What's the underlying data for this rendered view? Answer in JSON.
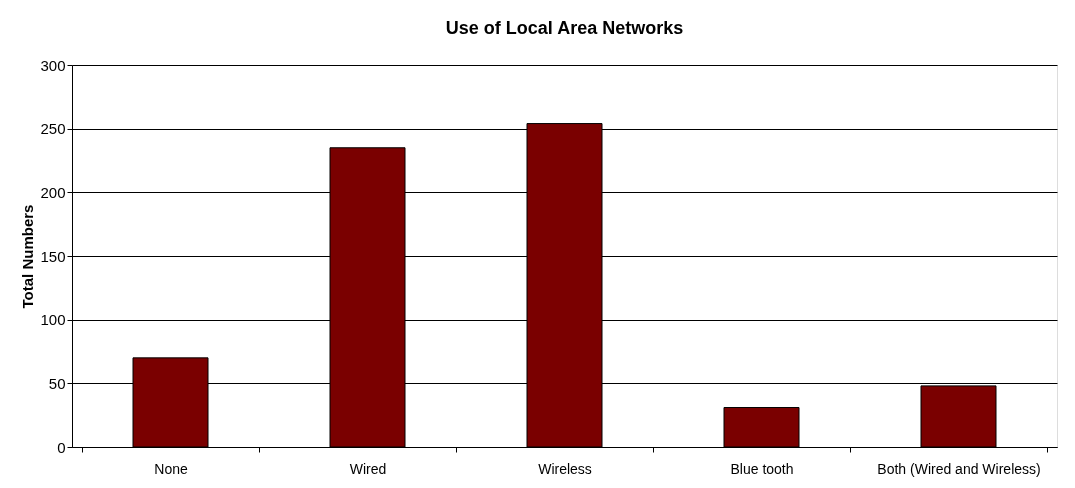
{
  "chart_data": {
    "type": "bar",
    "title": "Use of Local Area Networks",
    "ylabel": "Total Numbers",
    "categories": [
      "None",
      "Wired",
      "Wireless",
      "Blue tooth",
      "Both (Wired and Wireless)"
    ],
    "values": [
      70,
      235,
      254,
      31,
      48
    ],
    "color": "#7a0000",
    "ylim": [
      0,
      300
    ],
    "yticks": [
      0,
      50,
      100,
      150,
      200,
      250,
      300
    ],
    "grid": "y"
  }
}
